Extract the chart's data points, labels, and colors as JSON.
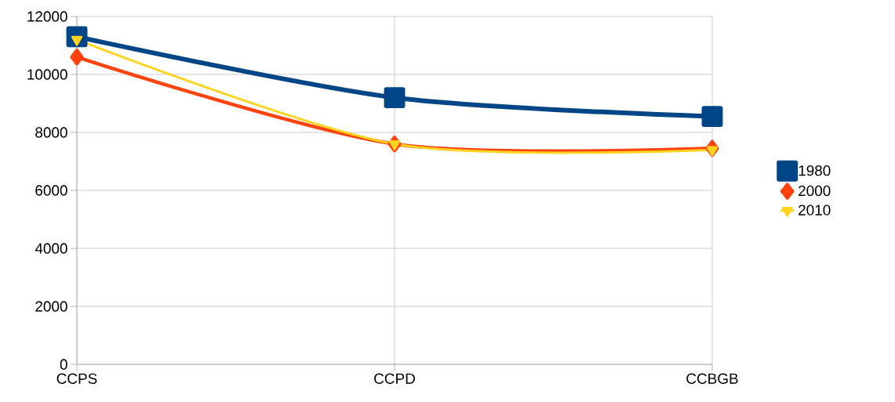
{
  "chart_data": {
    "type": "line",
    "categories": [
      "CCPS",
      "CCPD",
      "CCBGB"
    ],
    "series": [
      {
        "name": "1980",
        "color": "#004586",
        "marker": "square",
        "values": [
          11300,
          9200,
          8550
        ]
      },
      {
        "name": "2000",
        "color": "#ff420e",
        "marker": "diamond",
        "values": [
          10600,
          7600,
          7450
        ]
      },
      {
        "name": "2010",
        "color": "#ffd320",
        "marker": "triangle",
        "values": [
          11200,
          7600,
          7400
        ]
      }
    ],
    "ylim": [
      0,
      12000
    ],
    "yticks": [
      0,
      2000,
      4000,
      6000,
      8000,
      10000,
      12000
    ],
    "grid": true,
    "legend": "right",
    "line_style": "solid"
  }
}
